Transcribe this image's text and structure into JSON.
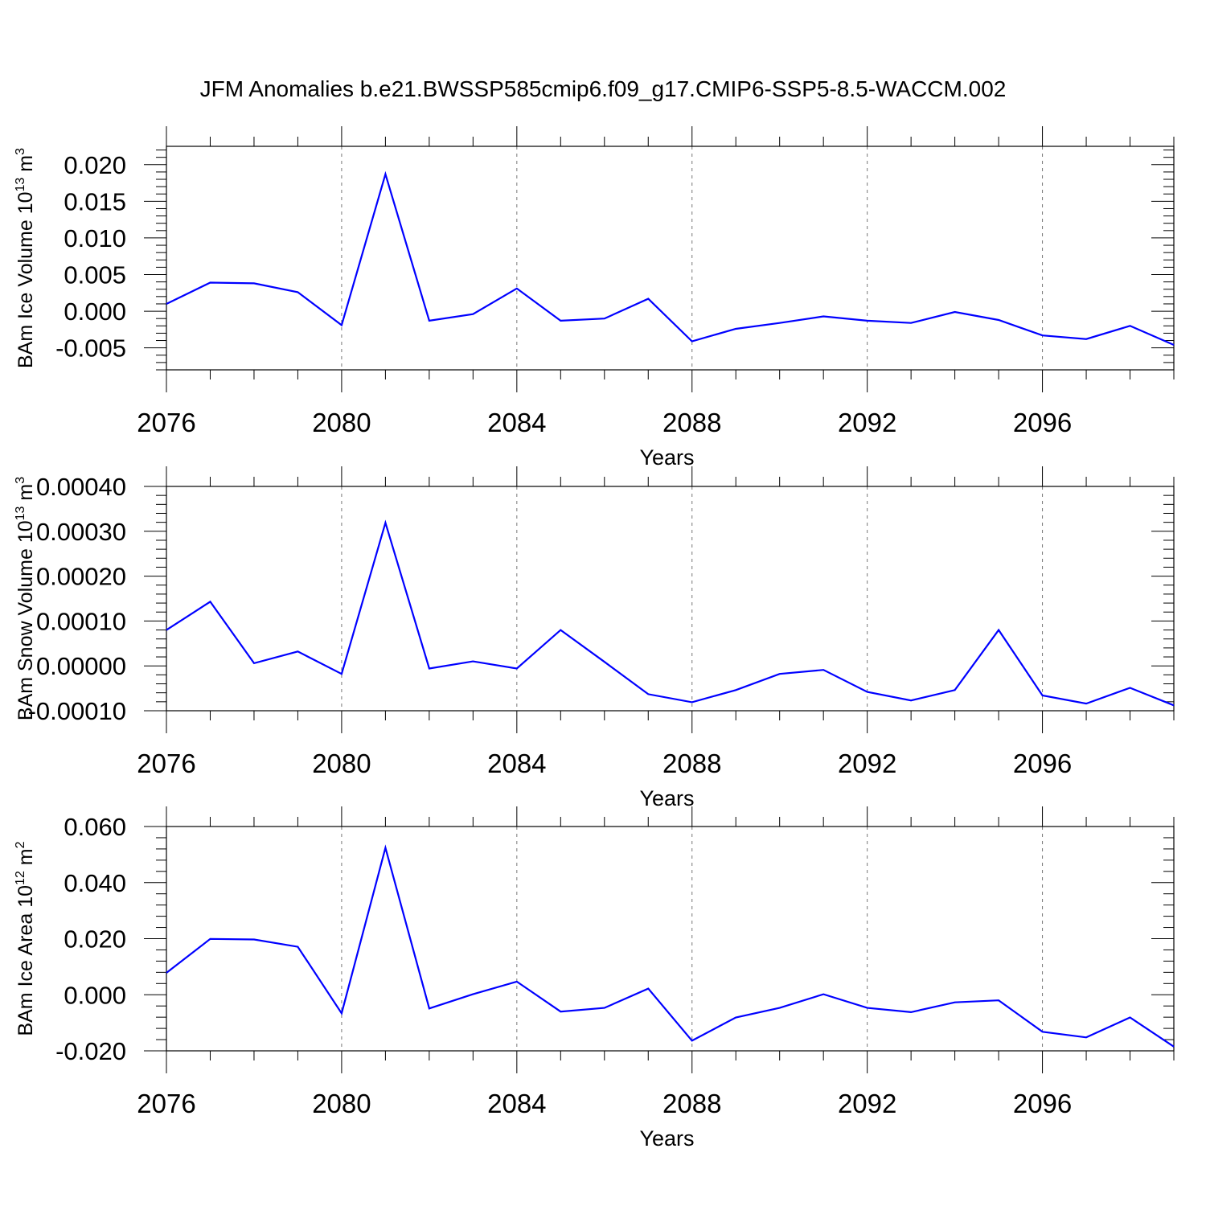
{
  "title": "JFM Anomalies b.e21.BWSSP585cmip6.f09_g17.CMIP6-SSP5-8.5-WACCM.002",
  "line_color": "#0000ff",
  "chart_data": [
    {
      "type": "line",
      "ylabel": "BAm Ice Volume 10",
      "ylabel_exp": "13",
      "ylabel_unit": "m",
      "ylabel_unit_exp": "3",
      "xlabel": "Years",
      "xlim": [
        2076,
        2099
      ],
      "ylim": [
        -0.008,
        0.0225
      ],
      "x_ticks": [
        2076,
        2080,
        2084,
        2088,
        2092,
        2096
      ],
      "y_ticks": [
        0.02,
        0.015,
        0.01,
        0.005,
        0.0,
        -0.005
      ],
      "y_tick_labels": [
        "0.020",
        "0.015",
        "0.010",
        "0.005",
        "0.000",
        "-0.005"
      ],
      "grid": "dashed vertical at major x ticks",
      "x": [
        2076,
        2077,
        2078,
        2079,
        2080,
        2081,
        2082,
        2083,
        2084,
        2085,
        2086,
        2087,
        2088,
        2089,
        2090,
        2091,
        2092,
        2093,
        2094,
        2095,
        2096,
        2097,
        2098,
        2099
      ],
      "values": [
        0.001,
        0.0039,
        0.0038,
        0.0026,
        -0.0019,
        0.0187,
        -0.0013,
        -0.0004,
        0.0031,
        -0.0013,
        -0.001,
        0.0017,
        -0.0041,
        -0.0024,
        -0.0016,
        -0.0007,
        -0.0013,
        -0.0016,
        -0.0001,
        -0.0012,
        -0.0033,
        -0.0038,
        -0.002,
        -0.0046
      ]
    },
    {
      "type": "line",
      "ylabel": "BAm Snow Volume 10",
      "ylabel_exp": "13",
      "ylabel_unit": "m",
      "ylabel_unit_exp": "3",
      "xlabel": "Years",
      "xlim": [
        2076,
        2099
      ],
      "ylim": [
        -0.0001,
        0.0004
      ],
      "x_ticks": [
        2076,
        2080,
        2084,
        2088,
        2092,
        2096
      ],
      "y_ticks": [
        0.0004,
        0.0003,
        0.0002,
        0.0001,
        0.0,
        -0.0001
      ],
      "y_tick_labels": [
        "0.00040",
        "0.00030",
        "0.00020",
        "0.00010",
        "0.00000",
        "-0.00010"
      ],
      "grid": "dashed vertical at major x ticks",
      "x": [
        2076,
        2077,
        2078,
        2079,
        2080,
        2081,
        2082,
        2083,
        2084,
        2085,
        2086,
        2087,
        2088,
        2089,
        2090,
        2091,
        2092,
        2093,
        2094,
        2095,
        2096,
        2097,
        2098,
        2099
      ],
      "values": [
        8e-05,
        0.000143,
        6e-06,
        3.2e-05,
        -1.8e-05,
        0.000319,
        -6e-06,
        1e-05,
        -6e-06,
        8e-05,
        9e-06,
        -6.3e-05,
        -8.1e-05,
        -5.4e-05,
        -1.8e-05,
        -9e-06,
        -5.8e-05,
        -7.7e-05,
        -5.4e-05,
        8e-05,
        -6.6e-05,
        -8.4e-05,
        -4.9e-05,
        -8.8e-05
      ]
    },
    {
      "type": "line",
      "ylabel": "BAm Ice Area 10",
      "ylabel_exp": "12",
      "ylabel_unit": "m",
      "ylabel_unit_exp": "2",
      "xlabel": "Years",
      "xlim": [
        2076,
        2099
      ],
      "ylim": [
        -0.02,
        0.06
      ],
      "x_ticks": [
        2076,
        2080,
        2084,
        2088,
        2092,
        2096
      ],
      "y_ticks": [
        0.06,
        0.04,
        0.02,
        0.0,
        -0.02
      ],
      "y_tick_labels": [
        "0.060",
        "0.040",
        "0.020",
        "0.000",
        "-0.020"
      ],
      "grid": "dashed vertical at major x ticks",
      "x": [
        2076,
        2077,
        2078,
        2079,
        2080,
        2081,
        2082,
        2083,
        2084,
        2085,
        2086,
        2087,
        2088,
        2089,
        2090,
        2091,
        2092,
        2093,
        2094,
        2095,
        2096,
        2097,
        2098,
        2099
      ],
      "values": [
        0.0078,
        0.0199,
        0.0197,
        0.0171,
        -0.0066,
        0.0524,
        -0.0049,
        0.0002,
        0.0047,
        -0.006,
        -0.0047,
        0.0022,
        -0.0164,
        -0.0081,
        -0.0047,
        0.0002,
        -0.0047,
        -0.0062,
        -0.0027,
        -0.002,
        -0.0132,
        -0.0152,
        -0.0081,
        -0.0185
      ]
    }
  ]
}
